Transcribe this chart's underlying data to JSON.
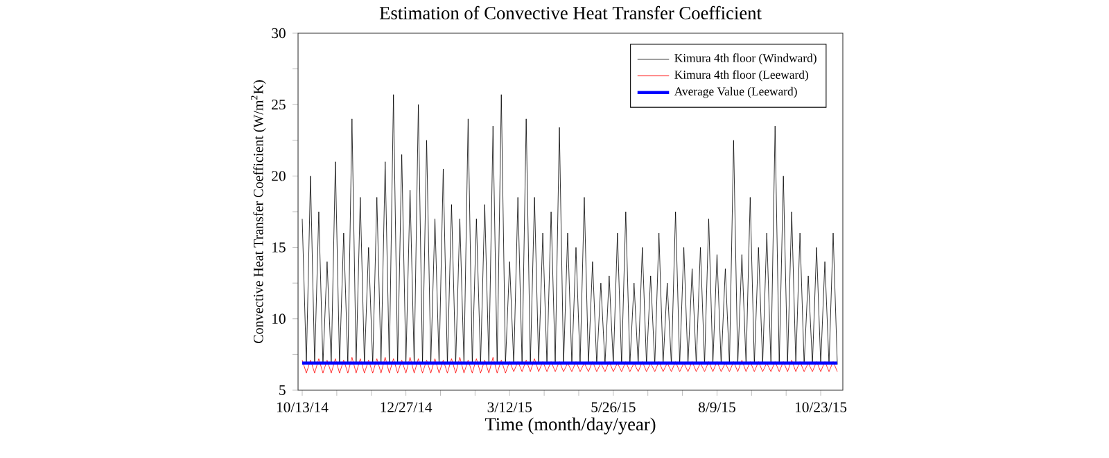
{
  "chart_data": {
    "type": "line",
    "title": "Estimation of Convective Heat Transfer Coefficient",
    "xlabel": "Time (month/day/year)",
    "ylabel": "Convective Heat Transfer Coefficient (W/m$^{2}$K)",
    "xlim": [
      "2014-10-10",
      "2015-11-08"
    ],
    "ylim": [
      5,
      30
    ],
    "yticks": [
      5,
      {
        "value": 7.5,
        "label": null
      },
      10,
      {
        "value": 12.5,
        "label": null
      },
      15,
      {
        "value": 17.5,
        "label": null
      },
      20,
      {
        "value": 22.5,
        "label": null
      },
      25,
      {
        "value": 27.5,
        "label": null
      },
      30
    ],
    "xticks": [
      {
        "value": "2014-10-13",
        "label": "10/13/14"
      },
      {
        "value": "2014-11-07",
        "label": null
      },
      {
        "value": "2014-12-02",
        "label": null
      },
      {
        "value": "2014-12-27",
        "label": "12/27/14"
      },
      {
        "value": "2015-01-21",
        "label": null
      },
      {
        "value": "2015-02-15",
        "label": null
      },
      {
        "value": "2015-03-12",
        "label": "3/12/15"
      },
      {
        "value": "2015-04-06",
        "label": null
      },
      {
        "value": "2015-05-01",
        "label": null
      },
      {
        "value": "2015-05-26",
        "label": "5/26/15"
      },
      {
        "value": "2015-06-20",
        "label": null
      },
      {
        "value": "2015-07-15",
        "label": null
      },
      {
        "value": "2015-08-09",
        "label": "8/9/15"
      },
      {
        "value": "2015-09-03",
        "label": null
      },
      {
        "value": "2015-09-28",
        "label": null
      },
      {
        "value": "2015-10-23",
        "label": "10/23/15"
      }
    ],
    "x": [
      "2014-10-13",
      "2014-10-16",
      "2014-10-19",
      "2014-10-22",
      "2014-10-25",
      "2014-10-28",
      "2014-10-31",
      "2014-11-03",
      "2014-11-06",
      "2014-11-09",
      "2014-11-12",
      "2014-11-15",
      "2014-11-18",
      "2014-11-21",
      "2014-11-24",
      "2014-11-27",
      "2014-11-30",
      "2014-12-03",
      "2014-12-06",
      "2014-12-09",
      "2014-12-12",
      "2014-12-15",
      "2014-12-18",
      "2014-12-21",
      "2014-12-24",
      "2014-12-27",
      "2014-12-30",
      "2015-01-02",
      "2015-01-05",
      "2015-01-08",
      "2015-01-11",
      "2015-01-14",
      "2015-01-17",
      "2015-01-20",
      "2015-01-23",
      "2015-01-26",
      "2015-01-29",
      "2015-02-01",
      "2015-02-04",
      "2015-02-07",
      "2015-02-10",
      "2015-02-13",
      "2015-02-16",
      "2015-02-19",
      "2015-02-22",
      "2015-02-25",
      "2015-02-28",
      "2015-03-03",
      "2015-03-06",
      "2015-03-09",
      "2015-03-12",
      "2015-03-15",
      "2015-03-18",
      "2015-03-21",
      "2015-03-24",
      "2015-03-27",
      "2015-03-30",
      "2015-04-02",
      "2015-04-05",
      "2015-04-08",
      "2015-04-11",
      "2015-04-14",
      "2015-04-17",
      "2015-04-20",
      "2015-04-23",
      "2015-04-26",
      "2015-04-29",
      "2015-05-02",
      "2015-05-05",
      "2015-05-08",
      "2015-05-11",
      "2015-05-14",
      "2015-05-17",
      "2015-05-20",
      "2015-05-23",
      "2015-05-26",
      "2015-05-29",
      "2015-06-01",
      "2015-06-04",
      "2015-06-07",
      "2015-06-10",
      "2015-06-13",
      "2015-06-16",
      "2015-06-19",
      "2015-06-22",
      "2015-06-25",
      "2015-06-28",
      "2015-07-01",
      "2015-07-04",
      "2015-07-07",
      "2015-07-10",
      "2015-07-13",
      "2015-07-16",
      "2015-07-19",
      "2015-07-22",
      "2015-07-25",
      "2015-07-28",
      "2015-07-31",
      "2015-08-03",
      "2015-08-06",
      "2015-08-09",
      "2015-08-12",
      "2015-08-15",
      "2015-08-18",
      "2015-08-21",
      "2015-08-24",
      "2015-08-27",
      "2015-08-30",
      "2015-09-02",
      "2015-09-05",
      "2015-09-08",
      "2015-09-11",
      "2015-09-14",
      "2015-09-17",
      "2015-09-20",
      "2015-09-23",
      "2015-09-26",
      "2015-09-29",
      "2015-10-02",
      "2015-10-05",
      "2015-10-08",
      "2015-10-11",
      "2015-10-14",
      "2015-10-17",
      "2015-10-20",
      "2015-10-23",
      "2015-10-26",
      "2015-10-29",
      "2015-11-01",
      "2015-11-04"
    ],
    "series": [
      {
        "name": "Kimura 4th floor (Windward)",
        "color": "#000000",
        "values": [
          17,
          6.8,
          20,
          6.8,
          17.5,
          6.8,
          14,
          6.8,
          21,
          6.8,
          16,
          6.8,
          24,
          6.8,
          18.5,
          6.8,
          15,
          6.8,
          18.5,
          6.8,
          21,
          6.8,
          25.7,
          6.8,
          21.5,
          6.8,
          19,
          6.8,
          25,
          6.8,
          22.5,
          6.8,
          17,
          6.8,
          20.5,
          6.8,
          18,
          6.8,
          17,
          6.8,
          24,
          6.8,
          17,
          6.8,
          18,
          6.8,
          23.5,
          6.8,
          25.7,
          6.8,
          14,
          6.8,
          18.5,
          6.8,
          24,
          6.8,
          18.5,
          6.8,
          16,
          6.8,
          17.5,
          6.8,
          23.4,
          6.8,
          16,
          6.8,
          15,
          6.8,
          18.5,
          6.8,
          14,
          6.8,
          12.5,
          6.8,
          13,
          6.8,
          16,
          6.8,
          17.5,
          6.8,
          12.5,
          6.8,
          15,
          6.8,
          13,
          6.8,
          16,
          6.8,
          12.5,
          6.8,
          17.5,
          6.8,
          15,
          6.8,
          13.5,
          6.8,
          15,
          6.8,
          17,
          6.8,
          14.5,
          6.8,
          13.5,
          6.8,
          22.5,
          6.8,
          14.5,
          6.8,
          18.5,
          6.8,
          15,
          6.8,
          16,
          6.8,
          23.5,
          6.8,
          20,
          6.8,
          17.5,
          6.8,
          16,
          6.8,
          13,
          6.8,
          15,
          6.8,
          14,
          6.8,
          16,
          6.8
        ]
      },
      {
        "name": "Kimura 4th floor (Leeward)",
        "color": "#ff0000",
        "values": [
          7.1,
          6.2,
          7.1,
          6.2,
          7.2,
          6.2,
          7.1,
          6.2,
          7.2,
          6.2,
          7.1,
          6.2,
          7.3,
          6.2,
          7.2,
          6.2,
          7.1,
          6.2,
          7.2,
          6.2,
          7.3,
          6.2,
          7.2,
          6.2,
          7.1,
          6.2,
          7.3,
          6.2,
          7.2,
          6.2,
          7.1,
          6.2,
          7.2,
          6.2,
          7.1,
          6.2,
          7.2,
          6.2,
          7.3,
          6.2,
          7.1,
          6.2,
          7.2,
          6.2,
          7.1,
          6.2,
          7.3,
          6.2,
          7.1,
          6.2,
          7.0,
          6.3,
          7.0,
          6.3,
          7.1,
          6.3,
          7.2,
          6.3,
          7.0,
          6.3,
          7.0,
          6.3,
          7.0,
          6.3,
          6.9,
          6.3,
          7.0,
          6.3,
          6.9,
          6.3,
          7.0,
          6.3,
          6.9,
          6.3,
          7.0,
          6.3,
          6.9,
          6.3,
          7.0,
          6.3,
          6.9,
          6.3,
          7.0,
          6.3,
          6.9,
          6.3,
          7.0,
          6.3,
          6.9,
          6.3,
          7.0,
          6.3,
          6.9,
          6.3,
          7.0,
          6.3,
          6.9,
          6.3,
          7.0,
          6.3,
          7.0,
          6.3,
          6.9,
          6.3,
          7.0,
          6.3,
          7.1,
          6.3,
          7.0,
          6.3,
          7.0,
          6.3,
          6.9,
          6.3,
          7.0,
          6.3,
          7.0,
          6.3,
          7.1,
          6.3,
          7.0,
          6.3,
          6.9,
          6.3,
          7.0,
          6.3,
          7.0,
          6.3,
          7.0,
          6.3
        ]
      },
      {
        "name": "Average Value (Leeward)",
        "color": "#0000ff",
        "x": [
          "2014-10-13",
          "2015-11-04"
        ],
        "values": [
          6.9,
          6.9
        ]
      }
    ],
    "legend": "top right",
    "grid": false
  }
}
